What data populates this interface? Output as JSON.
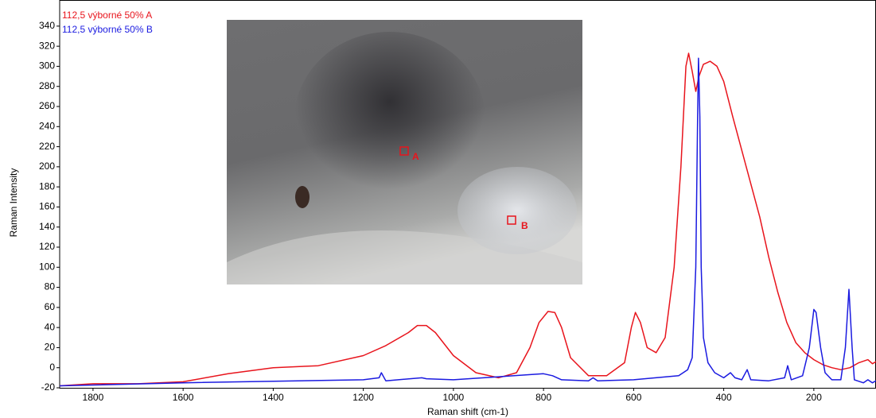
{
  "chart_data": {
    "type": "line",
    "x_label": "Raman shift (cm-1)",
    "y_label": "Raman Intensity",
    "xlim": [
      1874,
      62
    ],
    "ylim": [
      -20,
      366
    ],
    "xticks": [
      1800,
      1600,
      1400,
      1200,
      1000,
      800,
      600,
      400,
      200
    ],
    "yticks": [
      -20,
      0,
      20,
      40,
      60,
      80,
      100,
      120,
      140,
      160,
      180,
      200,
      220,
      240,
      260,
      280,
      300,
      320,
      340
    ],
    "annotations": [
      "A",
      "B"
    ],
    "series": [
      {
        "name": "112,5 výborné 50% A",
        "color": "#e8141c",
        "x": [
          1874,
          1800,
          1700,
          1600,
          1500,
          1400,
          1300,
          1200,
          1150,
          1100,
          1080,
          1060,
          1040,
          1000,
          950,
          900,
          860,
          830,
          810,
          790,
          775,
          760,
          740,
          700,
          660,
          620,
          605,
          596,
          585,
          570,
          550,
          530,
          510,
          495,
          484,
          478,
          470,
          462,
          455,
          445,
          430,
          415,
          400,
          380,
          350,
          320,
          300,
          280,
          260,
          240,
          220,
          200,
          180,
          160,
          140,
          120,
          100,
          80,
          70,
          62
        ],
        "values": [
          -18,
          -16,
          -16,
          -14,
          -6,
          0,
          2,
          12,
          22,
          35,
          42,
          42,
          35,
          12,
          -5,
          -10,
          -5,
          20,
          45,
          56,
          55,
          40,
          10,
          -8,
          -8,
          5,
          40,
          55,
          45,
          20,
          15,
          30,
          100,
          200,
          300,
          313,
          295,
          275,
          290,
          302,
          305,
          300,
          285,
          250,
          200,
          150,
          110,
          75,
          45,
          25,
          15,
          8,
          3,
          0,
          -2,
          0,
          5,
          8,
          4,
          6
        ]
      },
      {
        "name": "112,5 výborné 50% B",
        "color": "#1a1ae0",
        "x": [
          1874,
          1600,
          1200,
          1165,
          1160,
          1150,
          1070,
          1060,
          1000,
          800,
          780,
          760,
          700,
          690,
          680,
          600,
          500,
          480,
          470,
          462,
          458,
          456,
          453,
          450,
          445,
          435,
          420,
          400,
          385,
          375,
          360,
          348,
          340,
          300,
          265,
          258,
          250,
          225,
          210,
          200,
          195,
          185,
          175,
          160,
          140,
          130,
          122,
          115,
          110,
          90,
          80,
          70,
          62
        ],
        "values": [
          -18,
          -15,
          -12,
          -10,
          -5,
          -13,
          -10,
          -11,
          -12,
          -6,
          -8,
          -12,
          -13,
          -10,
          -13,
          -12,
          -8,
          -2,
          10,
          100,
          250,
          308,
          250,
          100,
          30,
          5,
          -5,
          -10,
          -5,
          -10,
          -12,
          -2,
          -12,
          -13,
          -10,
          2,
          -12,
          -8,
          20,
          58,
          55,
          20,
          -5,
          -12,
          -12,
          20,
          78,
          20,
          -12,
          -15,
          -12,
          -15,
          -13
        ]
      }
    ]
  }
}
